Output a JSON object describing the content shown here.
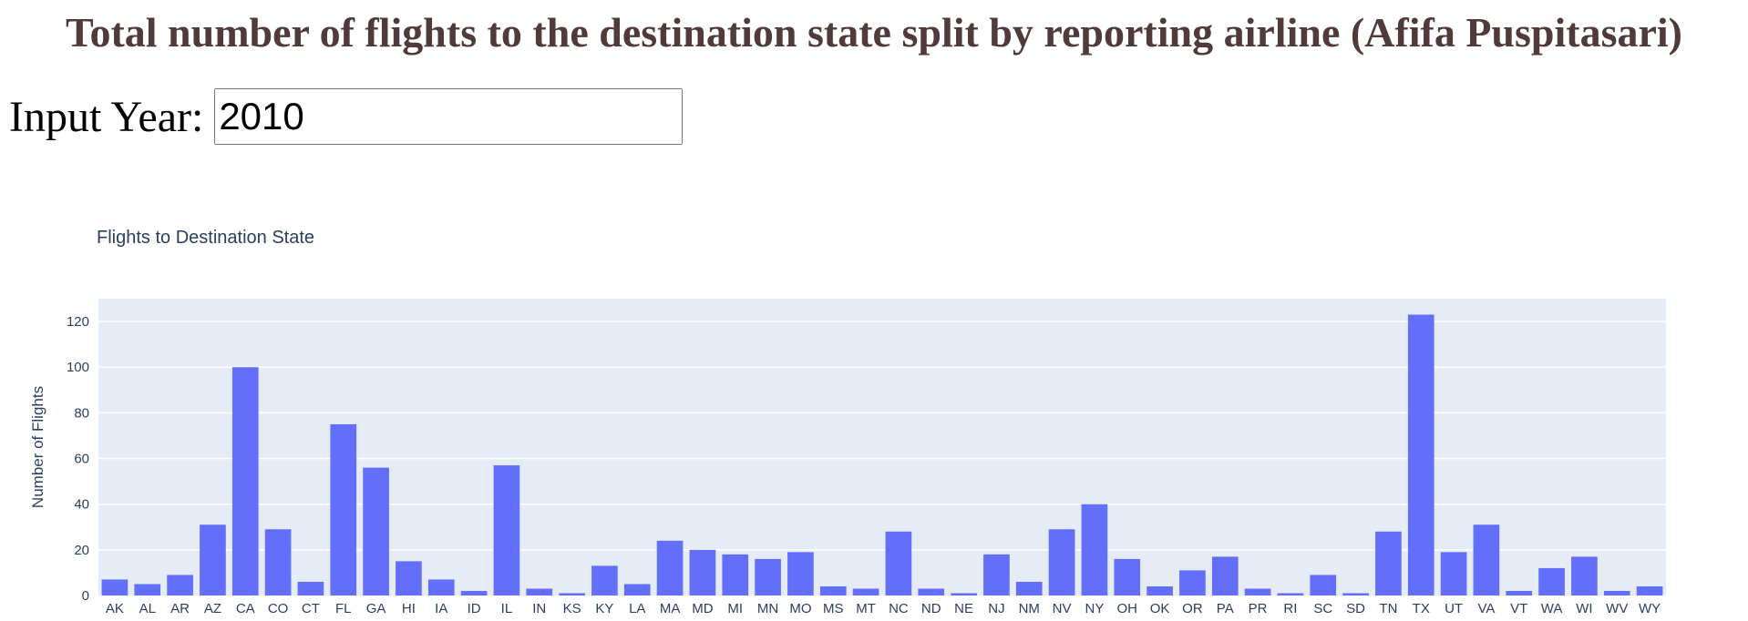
{
  "header": {
    "title": "Total number of flights to the destination state split by reporting airline (Afifa Puspitasari)"
  },
  "controls": {
    "year_label": "Input Year:",
    "year_value": "2010"
  },
  "colors": {
    "bar": "#636efa",
    "plot_bg": "#e5ecf6",
    "title": "#503A3A",
    "text": "#2a3f5f"
  },
  "chart_data": {
    "type": "bar",
    "title": "Flights to Destination State",
    "xlabel": "",
    "ylabel": "Number of Flights",
    "ylim": [
      0,
      130
    ],
    "yticks": [
      0,
      20,
      40,
      60,
      80,
      100,
      120
    ],
    "grid": true,
    "categories": [
      "AK",
      "AL",
      "AR",
      "AZ",
      "CA",
      "CO",
      "CT",
      "FL",
      "GA",
      "HI",
      "IA",
      "ID",
      "IL",
      "IN",
      "KS",
      "KY",
      "LA",
      "MA",
      "MD",
      "MI",
      "MN",
      "MO",
      "MS",
      "MT",
      "NC",
      "ND",
      "NE",
      "NJ",
      "NM",
      "NV",
      "NY",
      "OH",
      "OK",
      "OR",
      "PA",
      "PR",
      "RI",
      "SC",
      "SD",
      "TN",
      "TX",
      "UT",
      "VA",
      "VT",
      "WA",
      "WI",
      "WV",
      "WY"
    ],
    "values": [
      7,
      5,
      9,
      31,
      100,
      29,
      6,
      75,
      56,
      15,
      7,
      2,
      57,
      3,
      1,
      13,
      5,
      24,
      20,
      18,
      16,
      19,
      4,
      3,
      28,
      3,
      1,
      18,
      6,
      29,
      40,
      16,
      4,
      11,
      17,
      3,
      1,
      9,
      1,
      28,
      123,
      19,
      31,
      2,
      12,
      17,
      2,
      4
    ]
  }
}
